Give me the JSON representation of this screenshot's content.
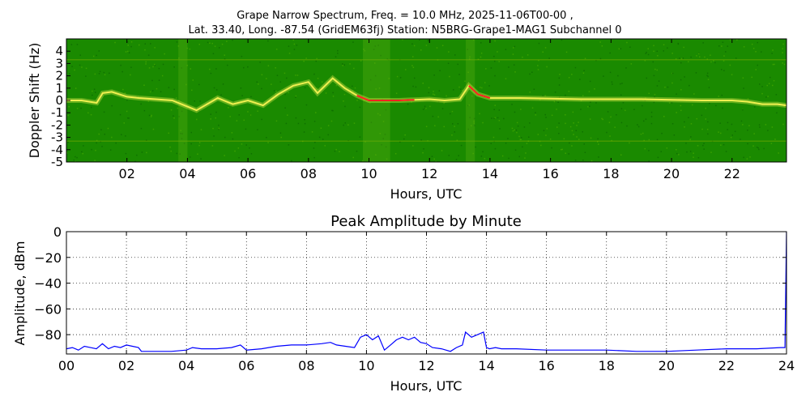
{
  "figure": {
    "title_line1": "Grape Narrow Spectrum, Freq. = 10.0 MHz, 2025-11-06T00-00 ,",
    "title_line2": "Lat.  33.40, Long. -87.54 (GridEM63fj) Station: N5BRG-Grape1-MAG1 Subchannel 0"
  },
  "chart_data": [
    {
      "type": "heatmap",
      "title": "",
      "xlabel": "Hours, UTC",
      "ylabel": "Doppler Shift (Hz)",
      "xlim": [
        0,
        23.8
      ],
      "ylim": [
        -5,
        5
      ],
      "x_ticks": [
        "02",
        "04",
        "06",
        "08",
        "10",
        "12",
        "14",
        "16",
        "18",
        "20",
        "22"
      ],
      "x_tick_values": [
        2,
        4,
        6,
        8,
        10,
        12,
        14,
        16,
        18,
        20,
        22
      ],
      "y_ticks": [
        "4",
        "3",
        "2",
        "1",
        "0",
        "-1",
        "-2",
        "-3",
        "-4",
        "-5"
      ],
      "y_tick_values": [
        4,
        3,
        2,
        1,
        0,
        -1,
        -2,
        -3,
        -4,
        -5
      ],
      "colors": {
        "background": "#1a8a00",
        "signal": "#f0f050",
        "peak": "#ff2020"
      },
      "peak_doppler_trace": {
        "x": [
          0,
          0.5,
          1.0,
          1.2,
          1.5,
          2.0,
          2.4,
          3.5,
          4.0,
          4.3,
          5.0,
          5.5,
          6.0,
          6.5,
          7.0,
          7.5,
          8.0,
          8.3,
          8.8,
          9.2,
          9.6,
          10.0,
          10.5,
          11.0,
          11.5,
          12.0,
          12.5,
          13.0,
          13.3,
          13.6,
          14.0,
          15.0,
          16.0,
          17.0,
          18.0,
          19.0,
          20.0,
          21.0,
          22.0,
          22.5,
          23.0,
          23.5,
          23.8
        ],
        "y": [
          0.0,
          0.0,
          -0.2,
          0.6,
          0.7,
          0.3,
          0.2,
          0.0,
          -0.5,
          -0.8,
          0.2,
          -0.3,
          0.0,
          -0.4,
          0.5,
          1.2,
          1.5,
          0.6,
          1.8,
          1.0,
          0.4,
          0.0,
          0.0,
          0.0,
          0.05,
          0.1,
          0.0,
          0.1,
          1.2,
          0.5,
          0.2,
          0.2,
          0.15,
          0.1,
          0.1,
          0.1,
          0.05,
          0.0,
          0.0,
          -0.1,
          -0.3,
          -0.3,
          -0.4
        ]
      }
    },
    {
      "type": "line",
      "title": "Peak Amplitude by Minute",
      "xlabel": "Hours, UTC",
      "ylabel": "Amplitude, dBm",
      "xlim": [
        0,
        24
      ],
      "ylim": [
        -95,
        0
      ],
      "grid": true,
      "x_ticks": [
        "00",
        "02",
        "04",
        "06",
        "08",
        "10",
        "12",
        "14",
        "16",
        "18",
        "20",
        "22",
        "24"
      ],
      "x_tick_values": [
        0,
        2,
        4,
        6,
        8,
        10,
        12,
        14,
        16,
        18,
        20,
        22,
        24
      ],
      "y_ticks": [
        "0",
        "−20",
        "−40",
        "−60",
        "−80"
      ],
      "y_tick_values": [
        0,
        -20,
        -40,
        -60,
        -80
      ],
      "line_color": "#0000ff",
      "series": [
        {
          "x": [
            0,
            0.2,
            0.4,
            0.6,
            0.8,
            1.0,
            1.2,
            1.4,
            1.6,
            1.8,
            2.0,
            2.2,
            2.4,
            2.5,
            3.0,
            3.5,
            4.0,
            4.2,
            4.5,
            5.0,
            5.5,
            5.8,
            6.0,
            6.5,
            7.0,
            7.5,
            8.0,
            8.5,
            8.8,
            9.0,
            9.3,
            9.6,
            9.8,
            10.0,
            10.2,
            10.4,
            10.6,
            10.8,
            11.0,
            11.2,
            11.4,
            11.6,
            11.8,
            12.0,
            12.2,
            12.5,
            12.8,
            13.0,
            13.2,
            13.3,
            13.5,
            13.7,
            13.9,
            14.0,
            14.1,
            14.3,
            14.5,
            15.0,
            16.0,
            17.0,
            18.0,
            19.0,
            20.0,
            21.0,
            22.0,
            23.0,
            23.8,
            23.95,
            24.0
          ],
          "y": [
            -91,
            -90,
            -92,
            -89,
            -90,
            -91,
            -87,
            -91,
            -89,
            -90,
            -88,
            -89,
            -90,
            -93,
            -93,
            -93,
            -92,
            -90,
            -91,
            -91,
            -90,
            -88,
            -92,
            -91,
            -89,
            -88,
            -88,
            -87,
            -86,
            -88,
            -89,
            -90,
            -82,
            -80,
            -84,
            -81,
            -92,
            -88,
            -84,
            -82,
            -84,
            -82,
            -86,
            -87,
            -90,
            -91,
            -93,
            -90,
            -88,
            -78,
            -82,
            -80,
            -78,
            -90,
            -91,
            -90,
            -91,
            -91,
            -92,
            -92,
            -92,
            -93,
            -93,
            -92,
            -91,
            -91,
            -90,
            -90,
            0
          ]
        }
      ]
    }
  ]
}
